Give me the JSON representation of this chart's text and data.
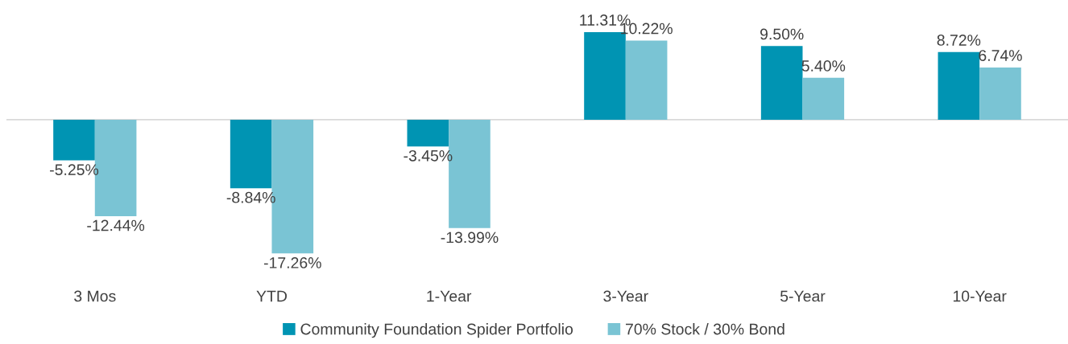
{
  "chart_data": {
    "type": "bar",
    "categories": [
      "3 Mos",
      "YTD",
      "1-Year",
      "3-Year",
      "5-Year",
      "10-Year"
    ],
    "series": [
      {
        "name": "Community Foundation Spider Portfolio",
        "color": "#0094b3",
        "values": [
          -5.25,
          -8.84,
          -3.45,
          11.31,
          9.5,
          8.72
        ],
        "value_labels": [
          "-5.25%",
          "-8.84%",
          "-3.45%",
          "11.31%",
          "9.50%",
          "8.72%"
        ]
      },
      {
        "name": "70% Stock / 30% Bond",
        "color": "#7ac4d4",
        "values": [
          -12.44,
          -17.26,
          -13.99,
          10.22,
          5.4,
          6.74
        ],
        "value_labels": [
          "-12.44%",
          "-17.26%",
          "-13.99%",
          "10.22%",
          "5.40%",
          "6.74%"
        ]
      }
    ],
    "legend": "bottom",
    "tick_labels": "x"
  }
}
